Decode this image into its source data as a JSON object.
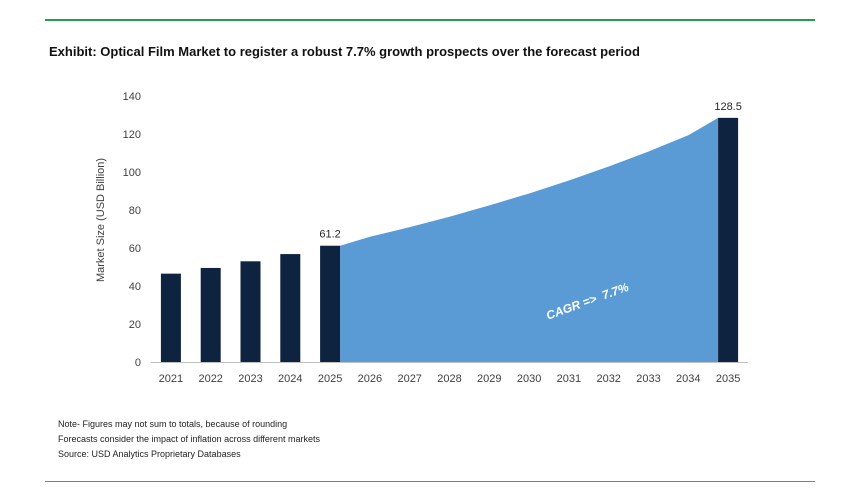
{
  "exhibit_title": "Exhibit: Optical Film Market to register a robust 7.7% growth prospects over the forecast period",
  "colors": {
    "accent_rule": "#1fa04a",
    "bar": "#0d2340",
    "area": "#5b9bd5",
    "axis_text": "#404040"
  },
  "chart_data": {
    "type": "bar",
    "categories": [
      "2021",
      "2022",
      "2023",
      "2024",
      "2025",
      "2026",
      "2027",
      "2028",
      "2029",
      "2030",
      "2031",
      "2032",
      "2033",
      "2034",
      "2035"
    ],
    "bars": [
      {
        "x": "2021",
        "value": 46.5
      },
      {
        "x": "2022",
        "value": 49.5
      },
      {
        "x": "2023",
        "value": 53.0
      },
      {
        "x": "2024",
        "value": 56.8
      },
      {
        "x": "2025",
        "value": 61.2
      },
      {
        "x": "2035",
        "value": 128.5
      }
    ],
    "area_series": {
      "x": [
        "2025",
        "2026",
        "2027",
        "2028",
        "2029",
        "2030",
        "2031",
        "2032",
        "2033",
        "2034",
        "2035"
      ],
      "values": [
        61.2,
        65.9,
        71.0,
        76.5,
        82.4,
        88.7,
        95.5,
        102.9,
        110.8,
        119.3,
        128.5
      ]
    },
    "data_labels": [
      {
        "x": "2025",
        "text": "61.2"
      },
      {
        "x": "2035",
        "text": "128.5"
      }
    ],
    "annotation": "CAGR =>  7.7%",
    "ylabel": "Market Size (USD Billion)",
    "xlabel": "",
    "ylim": [
      0,
      140
    ],
    "yticks": [
      0,
      20,
      40,
      60,
      80,
      100,
      120,
      140
    ],
    "grid": false,
    "legend": "none"
  },
  "notes": [
    "Note- Figures may not sum to totals, because of rounding",
    "Forecasts consider the impact of inflation across different markets",
    "Source: USD Analytics Proprietary Databases"
  ]
}
